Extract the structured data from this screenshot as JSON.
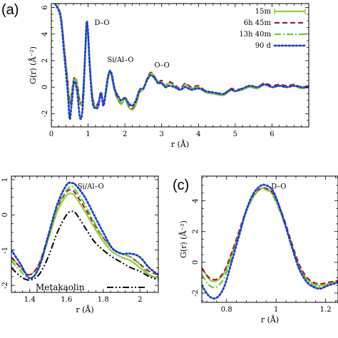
{
  "chart_data": [
    {
      "type": "line",
      "panel_label": "(a)",
      "xlabel": "r (Å)",
      "ylabel": "G(r) (Å⁻²)",
      "xlim": [
        0,
        7
      ],
      "ylim": [
        -3,
        6.3
      ],
      "x_ticks": [
        0,
        1,
        2,
        3,
        4,
        5,
        6
      ],
      "y_ticks": [
        -2,
        0,
        2,
        4,
        6
      ],
      "legend_position": "top-right",
      "annotations": [
        {
          "text": "D–O",
          "x": 1.17,
          "y": 4.7
        },
        {
          "text": "Si/Al–O",
          "x": 1.52,
          "y": 1.9
        },
        {
          "text": "O–O",
          "x": 2.8,
          "y": 1.5
        }
      ],
      "series": [
        {
          "name": "15m",
          "color": "#9acd32",
          "dash": "solid",
          "x": [
            0.1,
            0.25,
            0.35,
            0.45,
            0.5,
            0.55,
            0.62,
            0.7,
            0.78,
            0.85,
            0.92,
            0.96,
            1.0,
            1.05,
            1.12,
            1.2,
            1.28,
            1.35,
            1.42,
            1.5,
            1.55,
            1.6,
            1.65,
            1.72,
            1.8,
            1.9,
            2.0,
            2.1,
            2.2,
            2.3,
            2.4,
            2.5,
            2.6,
            2.7,
            2.8,
            2.9,
            3.0,
            3.1,
            3.2,
            3.35,
            3.5,
            3.65,
            3.8,
            4.0,
            4.2,
            4.4,
            4.6,
            4.7,
            4.8,
            4.9,
            5.0,
            5.2,
            5.4,
            5.6,
            5.8,
            6.0,
            6.2,
            6.4,
            6.6,
            6.8,
            7.0
          ],
          "y": [
            6.3,
            5.5,
            3.0,
            0.3,
            -1.3,
            -0.6,
            0.7,
            0.2,
            -1.2,
            -0.9,
            2.5,
            4.6,
            3.8,
            1.5,
            -0.8,
            -1.5,
            -1.2,
            -0.5,
            -1.2,
            -0.2,
            0.8,
            1.1,
            0.6,
            -0.3,
            -0.9,
            -1.3,
            -0.9,
            -1.5,
            -1.7,
            -1.3,
            -0.4,
            -0.2,
            0.6,
            1.1,
            0.8,
            0.3,
            0.4,
            0.0,
            0.3,
            0.1,
            -0.2,
            0.2,
            -0.1,
            0.0,
            -0.4,
            -0.5,
            -0.6,
            -0.6,
            -0.4,
            -0.2,
            -0.3,
            -0.2,
            0.0,
            -0.1,
            0.2,
            0.0,
            0.1,
            0.0,
            0.1,
            -0.1,
            0.0
          ]
        },
        {
          "name": "6h 45m",
          "color": "#a8173a",
          "dash": "dash",
          "x": [
            0.1,
            0.25,
            0.35,
            0.45,
            0.5,
            0.55,
            0.62,
            0.7,
            0.78,
            0.85,
            0.92,
            0.96,
            1.0,
            1.05,
            1.12,
            1.2,
            1.28,
            1.35,
            1.42,
            1.5,
            1.55,
            1.6,
            1.65,
            1.72,
            1.8,
            1.9,
            2.0,
            2.1,
            2.2,
            2.3,
            2.4,
            2.5,
            2.6,
            2.7,
            2.8,
            2.9,
            3.0,
            3.1,
            3.2,
            3.35,
            3.5,
            3.65,
            3.8,
            4.0,
            4.2,
            4.4,
            4.6,
            4.7,
            4.8,
            4.9,
            5.0,
            5.2,
            5.4,
            5.6,
            5.8,
            6.0,
            6.2,
            6.4,
            6.6,
            6.8,
            7.0
          ],
          "y": [
            6.3,
            5.5,
            3.0,
            0.3,
            -1.3,
            -0.5,
            0.7,
            0.3,
            -1.1,
            -0.8,
            2.5,
            4.7,
            3.9,
            1.5,
            -0.7,
            -1.4,
            -1.1,
            -0.4,
            -1.1,
            -0.1,
            0.8,
            1.2,
            0.7,
            -0.2,
            -0.8,
            -1.2,
            -0.8,
            -1.4,
            -1.6,
            -1.2,
            -0.3,
            -0.1,
            0.6,
            1.1,
            0.8,
            0.4,
            0.5,
            0.1,
            0.4,
            0.2,
            -0.1,
            0.3,
            0.0,
            0.1,
            -0.3,
            -0.4,
            -0.5,
            -0.5,
            -0.3,
            -0.1,
            -0.2,
            -0.1,
            0.1,
            0.0,
            0.3,
            0.1,
            0.2,
            0.1,
            0.2,
            0.0,
            0.1
          ]
        },
        {
          "name": "13h 40m",
          "color": "#66cc33",
          "dash": "dashdot",
          "x": [
            0.1,
            0.25,
            0.35,
            0.45,
            0.5,
            0.55,
            0.62,
            0.7,
            0.78,
            0.85,
            0.92,
            0.96,
            1.0,
            1.05,
            1.12,
            1.2,
            1.28,
            1.35,
            1.42,
            1.5,
            1.55,
            1.6,
            1.65,
            1.72,
            1.8,
            1.9,
            2.0,
            2.1,
            2.2,
            2.3,
            2.4,
            2.5,
            2.6,
            2.7,
            2.8,
            2.9,
            3.0,
            3.1,
            3.2,
            3.35,
            3.5,
            3.65,
            3.8,
            4.0,
            4.2,
            4.4,
            4.6,
            4.7,
            4.8,
            4.9,
            5.0,
            5.2,
            5.4,
            5.6,
            5.8,
            6.0,
            6.2,
            6.4,
            6.6,
            6.8,
            7.0
          ],
          "y": [
            6.3,
            5.5,
            3.0,
            0.2,
            -1.4,
            -0.6,
            0.6,
            0.2,
            -1.2,
            -0.9,
            2.4,
            4.6,
            3.8,
            1.4,
            -0.8,
            -1.5,
            -1.2,
            -0.5,
            -1.2,
            -0.2,
            0.9,
            1.3,
            0.8,
            -0.1,
            -0.7,
            -1.2,
            -0.9,
            -1.5,
            -1.7,
            -1.3,
            -0.4,
            -0.2,
            0.5,
            1.0,
            0.9,
            0.4,
            0.4,
            0.1,
            0.3,
            0.1,
            -0.2,
            0.2,
            -0.1,
            0.0,
            -0.4,
            -0.5,
            -0.6,
            -0.6,
            -0.4,
            -0.2,
            -0.3,
            -0.2,
            0.0,
            -0.1,
            0.2,
            0.0,
            0.1,
            0.0,
            0.1,
            -0.1,
            0.0
          ]
        },
        {
          "name": "90 d",
          "color": "#1a3fd6",
          "dash": "dot",
          "x": [
            0.1,
            0.25,
            0.35,
            0.45,
            0.5,
            0.55,
            0.62,
            0.7,
            0.78,
            0.85,
            0.92,
            0.96,
            1.0,
            1.05,
            1.12,
            1.2,
            1.28,
            1.35,
            1.42,
            1.5,
            1.55,
            1.6,
            1.65,
            1.72,
            1.8,
            1.9,
            2.0,
            2.1,
            2.2,
            2.3,
            2.4,
            2.5,
            2.6,
            2.7,
            2.8,
            2.9,
            3.0,
            3.1,
            3.2,
            3.35,
            3.5,
            3.65,
            3.8,
            4.0,
            4.2,
            4.4,
            4.6,
            4.7,
            4.8,
            4.9,
            5.0,
            5.2,
            5.4,
            5.6,
            5.8,
            6.0,
            6.2,
            6.4,
            6.6,
            6.8,
            7.0
          ],
          "y": [
            6.3,
            5.3,
            2.5,
            -0.5,
            -2.4,
            -1.3,
            0.4,
            -0.3,
            -2.3,
            -1.6,
            2.5,
            4.9,
            4.0,
            1.3,
            -1.1,
            -1.6,
            -1.4,
            -0.4,
            -1.4,
            0.1,
            0.9,
            1.2,
            0.9,
            -0.1,
            -0.6,
            -1.0,
            -0.8,
            -1.2,
            -1.4,
            -1.0,
            -0.2,
            -0.1,
            0.5,
            0.9,
            0.7,
            0.3,
            0.3,
            0.0,
            0.1,
            0.0,
            -0.2,
            0.0,
            -0.2,
            -0.1,
            -0.3,
            -0.4,
            -0.5,
            -0.5,
            -0.3,
            -0.2,
            -0.3,
            -0.1,
            0.1,
            0.0,
            0.2,
            0.0,
            0.1,
            0.0,
            0.1,
            0.0,
            0.0
          ]
        }
      ]
    },
    {
      "type": "line",
      "panel_label": "",
      "xlabel": "r (Å)",
      "ylabel": "",
      "xlim": [
        1.3,
        2.1
      ],
      "ylim": [
        -2.2,
        1.1
      ],
      "x_ticks": [
        1.4,
        1.6,
        1.8,
        2.0
      ],
      "y_ticks": [
        -2,
        -1,
        0,
        1
      ],
      "annotations": [
        {
          "text": "Si/Al–O",
          "x": 1.66,
          "y": 0.75
        },
        {
          "text": "Metakaolin",
          "x": 1.36,
          "y": -2.0
        }
      ],
      "series": [
        {
          "name": "15m",
          "color": "#9acd32",
          "dash": "solid",
          "x": [
            1.3,
            1.35,
            1.4,
            1.45,
            1.5,
            1.55,
            1.6,
            1.63,
            1.65,
            1.7,
            1.75,
            1.8,
            1.85,
            1.9,
            1.95,
            2.0,
            2.05,
            2.1
          ],
          "y": [
            -1.2,
            -1.5,
            -1.7,
            -1.4,
            -0.7,
            0.1,
            0.55,
            0.6,
            0.5,
            0.1,
            -0.35,
            -0.75,
            -1.05,
            -1.2,
            -1.3,
            -1.5,
            -1.7,
            -1.8
          ]
        },
        {
          "name": "6h 45m",
          "color": "#a8173a",
          "dash": "dash",
          "x": [
            1.3,
            1.35,
            1.4,
            1.45,
            1.5,
            1.55,
            1.6,
            1.63,
            1.65,
            1.7,
            1.75,
            1.8,
            1.85,
            1.9,
            1.95,
            2.0,
            2.05,
            2.1
          ],
          "y": [
            -1.2,
            -1.5,
            -1.7,
            -1.4,
            -0.6,
            0.2,
            0.65,
            0.7,
            0.6,
            0.2,
            -0.25,
            -0.65,
            -0.95,
            -1.1,
            -1.2,
            -1.4,
            -1.6,
            -1.7
          ]
        },
        {
          "name": "13h 40m",
          "color": "#66cc33",
          "dash": "dashdot",
          "x": [
            1.3,
            1.35,
            1.4,
            1.45,
            1.5,
            1.55,
            1.6,
            1.63,
            1.65,
            1.7,
            1.75,
            1.8,
            1.85,
            1.9,
            1.95,
            2.0,
            2.05,
            2.1
          ],
          "y": [
            -1.3,
            -1.6,
            -1.8,
            -1.5,
            -0.7,
            0.2,
            0.7,
            0.8,
            0.7,
            0.3,
            -0.2,
            -0.65,
            -0.95,
            -1.1,
            -1.2,
            -1.4,
            -1.7,
            -1.8
          ]
        },
        {
          "name": "90 d",
          "color": "#1a3fd6",
          "dash": "dot",
          "x": [
            1.3,
            1.35,
            1.4,
            1.45,
            1.5,
            1.55,
            1.6,
            1.63,
            1.65,
            1.7,
            1.75,
            1.8,
            1.85,
            1.9,
            1.95,
            2.0,
            2.05,
            2.1
          ],
          "y": [
            -1.0,
            -1.4,
            -1.8,
            -1.5,
            -0.6,
            0.3,
            0.85,
            0.9,
            0.85,
            0.5,
            0.0,
            -0.5,
            -0.95,
            -1.1,
            -1.1,
            -1.2,
            -1.5,
            -1.7
          ]
        },
        {
          "name": "Metakaolin",
          "color": "#000000",
          "dash": "dashdotdot",
          "x": [
            1.3,
            1.35,
            1.4,
            1.45,
            1.5,
            1.55,
            1.6,
            1.63,
            1.65,
            1.7,
            1.75,
            1.8,
            1.85,
            1.9,
            1.95,
            2.0,
            2.05,
            2.1
          ],
          "y": [
            -1.5,
            -1.75,
            -1.85,
            -1.7,
            -1.2,
            -0.5,
            0.0,
            0.1,
            0.05,
            -0.35,
            -0.75,
            -1.0,
            -1.2,
            -1.35,
            -1.5,
            -1.6,
            -1.75,
            -1.85
          ]
        }
      ]
    },
    {
      "type": "line",
      "panel_label": "(c)",
      "xlabel": "r (Å)",
      "ylabel": "G(r) (Å⁻²)",
      "xlim": [
        0.7,
        1.25
      ],
      "ylim": [
        -2.6,
        5.6
      ],
      "x_ticks": [
        0.8,
        1.0,
        1.2
      ],
      "y_ticks": [
        -2,
        0,
        2,
        4
      ],
      "annotations": [
        {
          "text": "D–O",
          "x": 0.98,
          "y": 4.8
        }
      ],
      "series": [
        {
          "name": "15m",
          "color": "#9acd32",
          "dash": "solid",
          "x": [
            0.7,
            0.73,
            0.76,
            0.79,
            0.82,
            0.85,
            0.88,
            0.91,
            0.94,
            0.96,
            0.98,
            1.0,
            1.03,
            1.06,
            1.09,
            1.12,
            1.15,
            1.18,
            1.21,
            1.25
          ],
          "y": [
            -0.3,
            -1.1,
            -1.2,
            -0.7,
            0.5,
            1.9,
            3.3,
            4.3,
            4.8,
            4.8,
            4.6,
            4.0,
            2.8,
            1.3,
            -0.1,
            -1.0,
            -1.4,
            -1.5,
            -1.4,
            -1.2
          ]
        },
        {
          "name": "6h 45m",
          "color": "#a8173a",
          "dash": "dash",
          "x": [
            0.7,
            0.73,
            0.76,
            0.79,
            0.82,
            0.85,
            0.88,
            0.91,
            0.94,
            0.96,
            0.98,
            1.0,
            1.03,
            1.06,
            1.09,
            1.12,
            1.15,
            1.18,
            1.21,
            1.25
          ],
          "y": [
            -0.4,
            -1.0,
            -1.1,
            -0.6,
            0.6,
            2.0,
            3.4,
            4.4,
            4.8,
            4.8,
            4.6,
            4.1,
            2.9,
            1.4,
            0.0,
            -0.9,
            -1.3,
            -1.4,
            -1.3,
            -1.2
          ]
        },
        {
          "name": "13h 40m",
          "color": "#66cc33",
          "dash": "dashdot",
          "x": [
            0.7,
            0.73,
            0.76,
            0.79,
            0.82,
            0.85,
            0.88,
            0.91,
            0.94,
            0.96,
            0.98,
            1.0,
            1.03,
            1.06,
            1.09,
            1.12,
            1.15,
            1.18,
            1.21,
            1.25
          ],
          "y": [
            -0.8,
            -1.5,
            -1.6,
            -1.0,
            0.3,
            1.8,
            3.3,
            4.3,
            4.8,
            4.7,
            4.5,
            3.9,
            2.7,
            1.2,
            -0.2,
            -1.1,
            -1.5,
            -1.6,
            -1.5,
            -1.3
          ]
        },
        {
          "name": "90 d",
          "color": "#1a3fd6",
          "dash": "dot",
          "x": [
            0.7,
            0.73,
            0.76,
            0.79,
            0.82,
            0.85,
            0.88,
            0.91,
            0.94,
            0.96,
            0.98,
            1.0,
            1.03,
            1.06,
            1.09,
            1.12,
            1.15,
            1.18,
            1.21,
            1.25
          ],
          "y": [
            -1.5,
            -2.2,
            -2.3,
            -1.6,
            0.0,
            1.7,
            3.4,
            4.5,
            5.0,
            5.0,
            4.8,
            4.2,
            2.8,
            1.2,
            -0.3,
            -1.2,
            -1.6,
            -1.7,
            -1.5,
            -1.3
          ]
        }
      ]
    }
  ]
}
